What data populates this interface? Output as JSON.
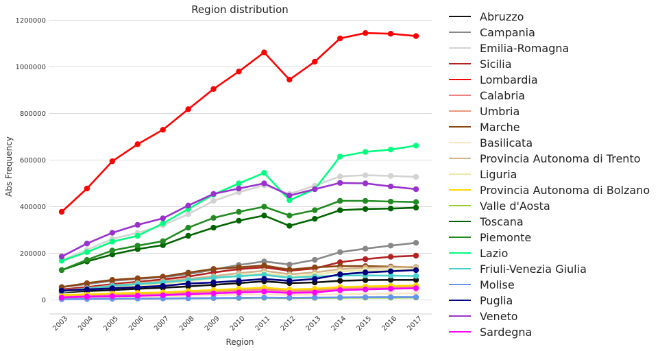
{
  "chart_data": {
    "type": "line",
    "title": "Region distribution",
    "xlabel": "Region",
    "ylabel": "Abs Frequency",
    "x": [
      "2003",
      "2004",
      "2005",
      "2006",
      "2007",
      "2008",
      "2009",
      "2010",
      "2011",
      "2012",
      "2013",
      "2014",
      "2015",
      "2016",
      "2017"
    ],
    "ylim": [
      -60000,
      1200000
    ],
    "yticks": [
      0,
      200000,
      400000,
      600000,
      800000,
      1000000,
      1200000
    ],
    "grid": "horizontal",
    "legend_position": "right",
    "series": [
      {
        "name": "Abruzzo",
        "color": "#111111",
        "values": [
          32000,
          38000,
          42000,
          48000,
          52000,
          58000,
          65000,
          72000,
          80000,
          72000,
          75000,
          82000,
          85000,
          86000,
          86000
        ]
      },
      {
        "name": "Campania",
        "color": "#888888",
        "values": [
          55000,
          68000,
          82000,
          90000,
          98000,
          110000,
          130000,
          150000,
          165000,
          152000,
          172000,
          205000,
          220000,
          233000,
          245000
        ]
      },
      {
        "name": "Emilia-Romagna",
        "color": "#d3d3d3",
        "values": [
          170000,
          215000,
          262000,
          288000,
          320000,
          368000,
          425000,
          462000,
          492000,
          455000,
          490000,
          530000,
          535000,
          532000,
          528000
        ]
      },
      {
        "name": "Sicilia",
        "color": "#b22222",
        "values": [
          45000,
          55000,
          68000,
          78000,
          88000,
          100000,
          118000,
          132000,
          140000,
          125000,
          135000,
          162000,
          175000,
          185000,
          190000
        ]
      },
      {
        "name": "Lombardia",
        "color": "#ff0000",
        "values": [
          378000,
          478000,
          595000,
          668000,
          730000,
          818000,
          905000,
          980000,
          1062000,
          945000,
          1022000,
          1122000,
          1145000,
          1142000,
          1132000
        ]
      },
      {
        "name": "Calabria",
        "color": "#f08080",
        "values": [
          12000,
          15000,
          18000,
          22000,
          26000,
          30000,
          35000,
          40000,
          45000,
          38000,
          40000,
          48000,
          50000,
          52000,
          54000
        ]
      },
      {
        "name": "Umbria",
        "color": "#e9967a",
        "values": [
          15000,
          18000,
          22000,
          25000,
          28000,
          33000,
          38000,
          45000,
          52000,
          44000,
          46000,
          52000,
          55000,
          57000,
          58000
        ]
      },
      {
        "name": "Marche",
        "color": "#8b4513",
        "values": [
          55000,
          72000,
          86000,
          93000,
          100000,
          117000,
          133000,
          140000,
          148000,
          130000,
          140000,
          145000,
          145000,
          143000,
          140000
        ]
      },
      {
        "name": "Basilicata",
        "color": "#ffe4c4",
        "values": [
          8000,
          10000,
          12000,
          14000,
          16000,
          18000,
          20000,
          22000,
          24000,
          21000,
          22000,
          25000,
          26000,
          27000,
          28000
        ]
      },
      {
        "name": "Provincia Autonoma di Trento",
        "color": "#d2b48c",
        "values": [
          40000,
          50000,
          62000,
          72000,
          80000,
          90000,
          102000,
          115000,
          125000,
          110000,
          118000,
          132000,
          138000,
          140000,
          142000
        ]
      },
      {
        "name": "Liguria",
        "color": "#eee8aa",
        "values": [
          35000,
          45000,
          55000,
          62000,
          70000,
          80000,
          92000,
          105000,
          115000,
          100000,
          108000,
          122000,
          128000,
          130000,
          132000
        ]
      },
      {
        "name": "Provincia Autonoma di Bolzano",
        "color": "#ffd700",
        "values": [
          20000,
          24000,
          28000,
          30000,
          32000,
          38000,
          42000,
          48000,
          52000,
          45000,
          48000,
          55000,
          58000,
          60000,
          62000
        ]
      },
      {
        "name": "Valle d'Aosta",
        "color": "#9acd32",
        "values": [
          4000,
          5000,
          5500,
          6000,
          6500,
          7000,
          7500,
          8000,
          9000,
          8000,
          8500,
          9000,
          9500,
          9500,
          10000
        ]
      },
      {
        "name": "Toscana",
        "color": "#006400",
        "values": [
          128000,
          165000,
          195000,
          218000,
          235000,
          275000,
          310000,
          340000,
          362000,
          318000,
          348000,
          385000,
          390000,
          392000,
          396000
        ]
      },
      {
        "name": "Piemonte",
        "color": "#228b22",
        "values": [
          128000,
          172000,
          212000,
          233000,
          252000,
          310000,
          352000,
          378000,
          400000,
          362000,
          385000,
          425000,
          425000,
          422000,
          420000
        ]
      },
      {
        "name": "Lazio",
        "color": "#00ff7f",
        "values": [
          168000,
          205000,
          250000,
          275000,
          328000,
          390000,
          452000,
          500000,
          545000,
          428000,
          475000,
          615000,
          635000,
          645000,
          662000
        ]
      },
      {
        "name": "Friuli-Venezia Giulia",
        "color": "#48d1cc",
        "values": [
          38000,
          48000,
          60000,
          68000,
          75000,
          85000,
          95000,
          102000,
          108000,
          95000,
          100000,
          105000,
          105000,
          104000,
          103000
        ]
      },
      {
        "name": "Molise",
        "color": "#6495ed",
        "values": [
          3000,
          4000,
          5000,
          5500,
          6000,
          7000,
          8000,
          9000,
          10000,
          9000,
          10000,
          11000,
          11500,
          12000,
          12000
        ]
      },
      {
        "name": "Puglia",
        "color": "#000080",
        "values": [
          40000,
          45000,
          50000,
          55000,
          60000,
          70000,
          75000,
          82000,
          90000,
          82000,
          90000,
          110000,
          118000,
          123000,
          128000
        ]
      },
      {
        "name": "Veneto",
        "color": "#9932cc",
        "values": [
          186000,
          242000,
          288000,
          322000,
          350000,
          405000,
          455000,
          478000,
          500000,
          448000,
          475000,
          502000,
          500000,
          487000,
          475000
        ]
      },
      {
        "name": "Sardegna",
        "color": "#ff00ff",
        "values": [
          10000,
          14000,
          16000,
          18000,
          20000,
          25000,
          28000,
          32000,
          36000,
          30000,
          32000,
          42000,
          45000,
          48000,
          50000
        ]
      }
    ]
  }
}
